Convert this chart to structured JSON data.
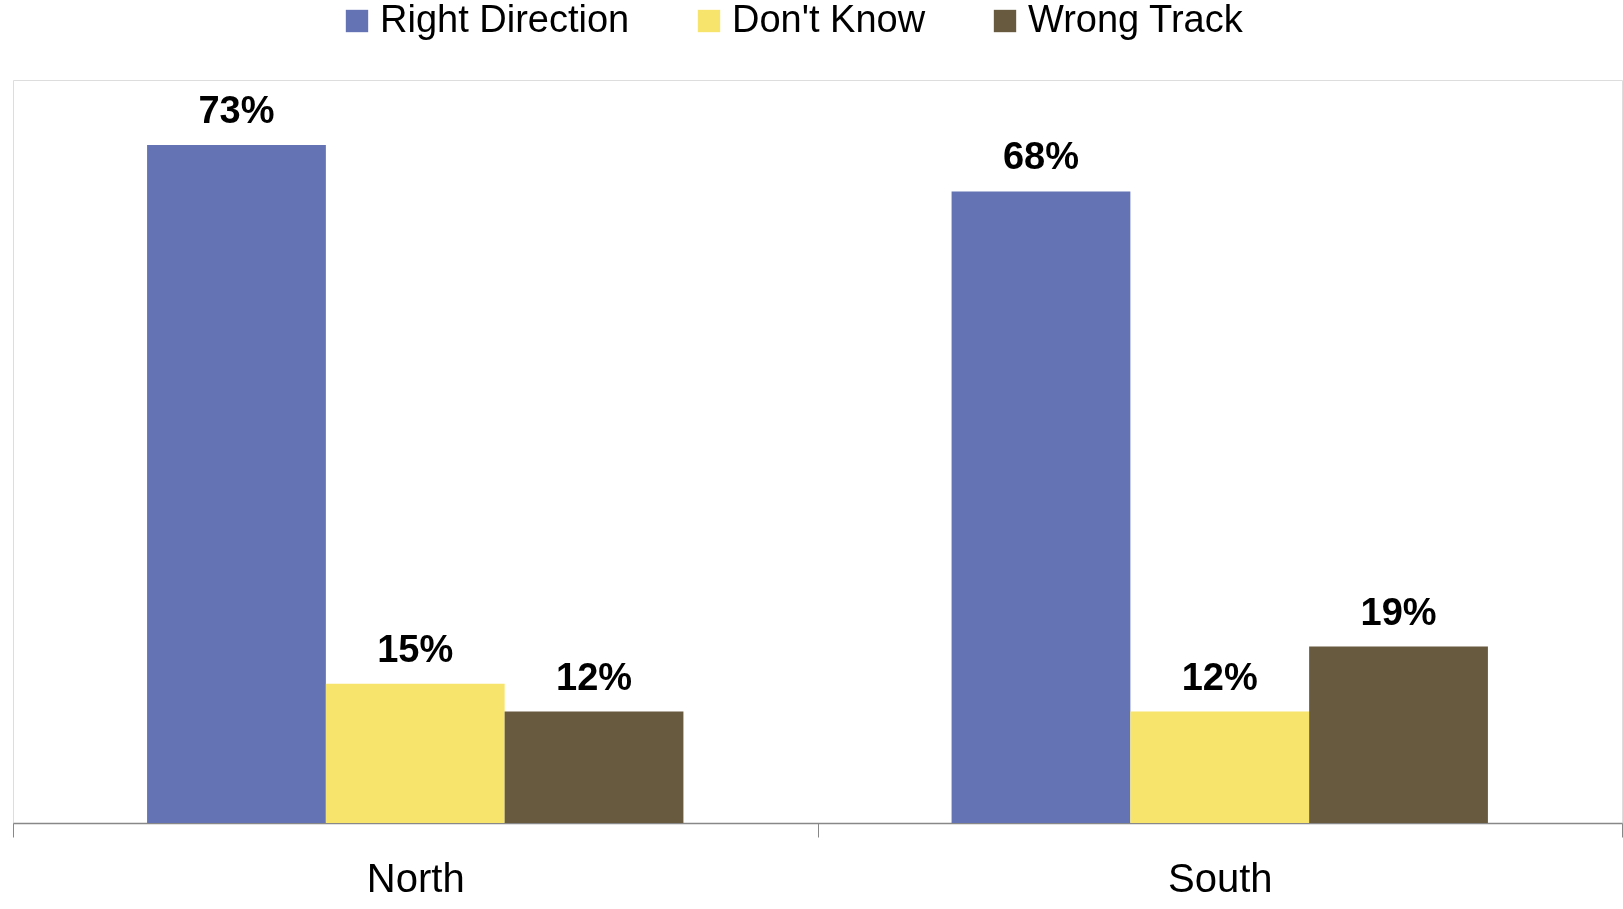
{
  "chart_data": {
    "type": "bar",
    "categories": [
      "North",
      "South"
    ],
    "series": [
      {
        "name": "Right Direction",
        "color": "#6373b4",
        "values": [
          73,
          68
        ],
        "value_labels": [
          "73%",
          "68%"
        ]
      },
      {
        "name": "Don't Know",
        "color": "#f7e46c",
        "values": [
          15,
          12
        ],
        "value_labels": [
          "15%",
          "12%"
        ]
      },
      {
        "name": "Wrong Track",
        "color": "#685a3f",
        "values": [
          12,
          19
        ],
        "value_labels": [
          "12%",
          "19%"
        ]
      }
    ],
    "legend": "top",
    "grid": false
  }
}
